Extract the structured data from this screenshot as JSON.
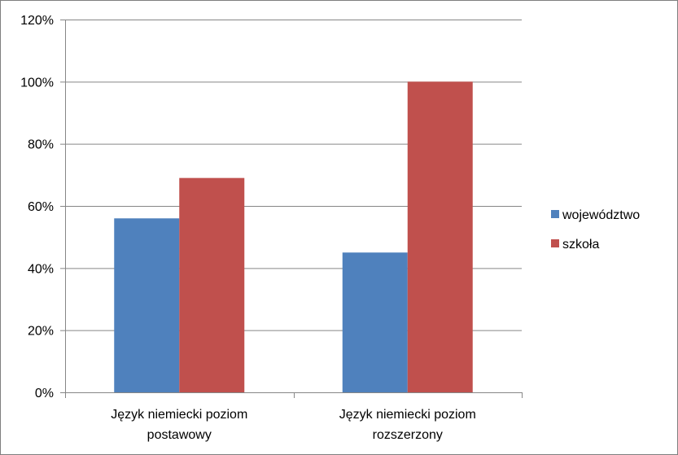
{
  "chart_data": {
    "type": "bar",
    "categories": [
      [
        "Język niemiecki poziom",
        "postawowy"
      ],
      [
        "Język niemiecki poziom",
        "rozszerzony"
      ]
    ],
    "series": [
      {
        "name": "województwo",
        "values": [
          56,
          45
        ],
        "color": "#4f81bd"
      },
      {
        "name": "szkoła",
        "values": [
          69,
          100
        ],
        "color": "#c0504d"
      }
    ],
    "y_ticks": [
      0,
      20,
      40,
      60,
      80,
      100,
      120
    ],
    "y_tick_labels": [
      "0%",
      "20%",
      "40%",
      "60%",
      "80%",
      "100%",
      "120%"
    ],
    "ylim": [
      0,
      120
    ],
    "grid": true,
    "legend_position": "right",
    "axis_color": "#868686",
    "grid_color": "#868686"
  }
}
